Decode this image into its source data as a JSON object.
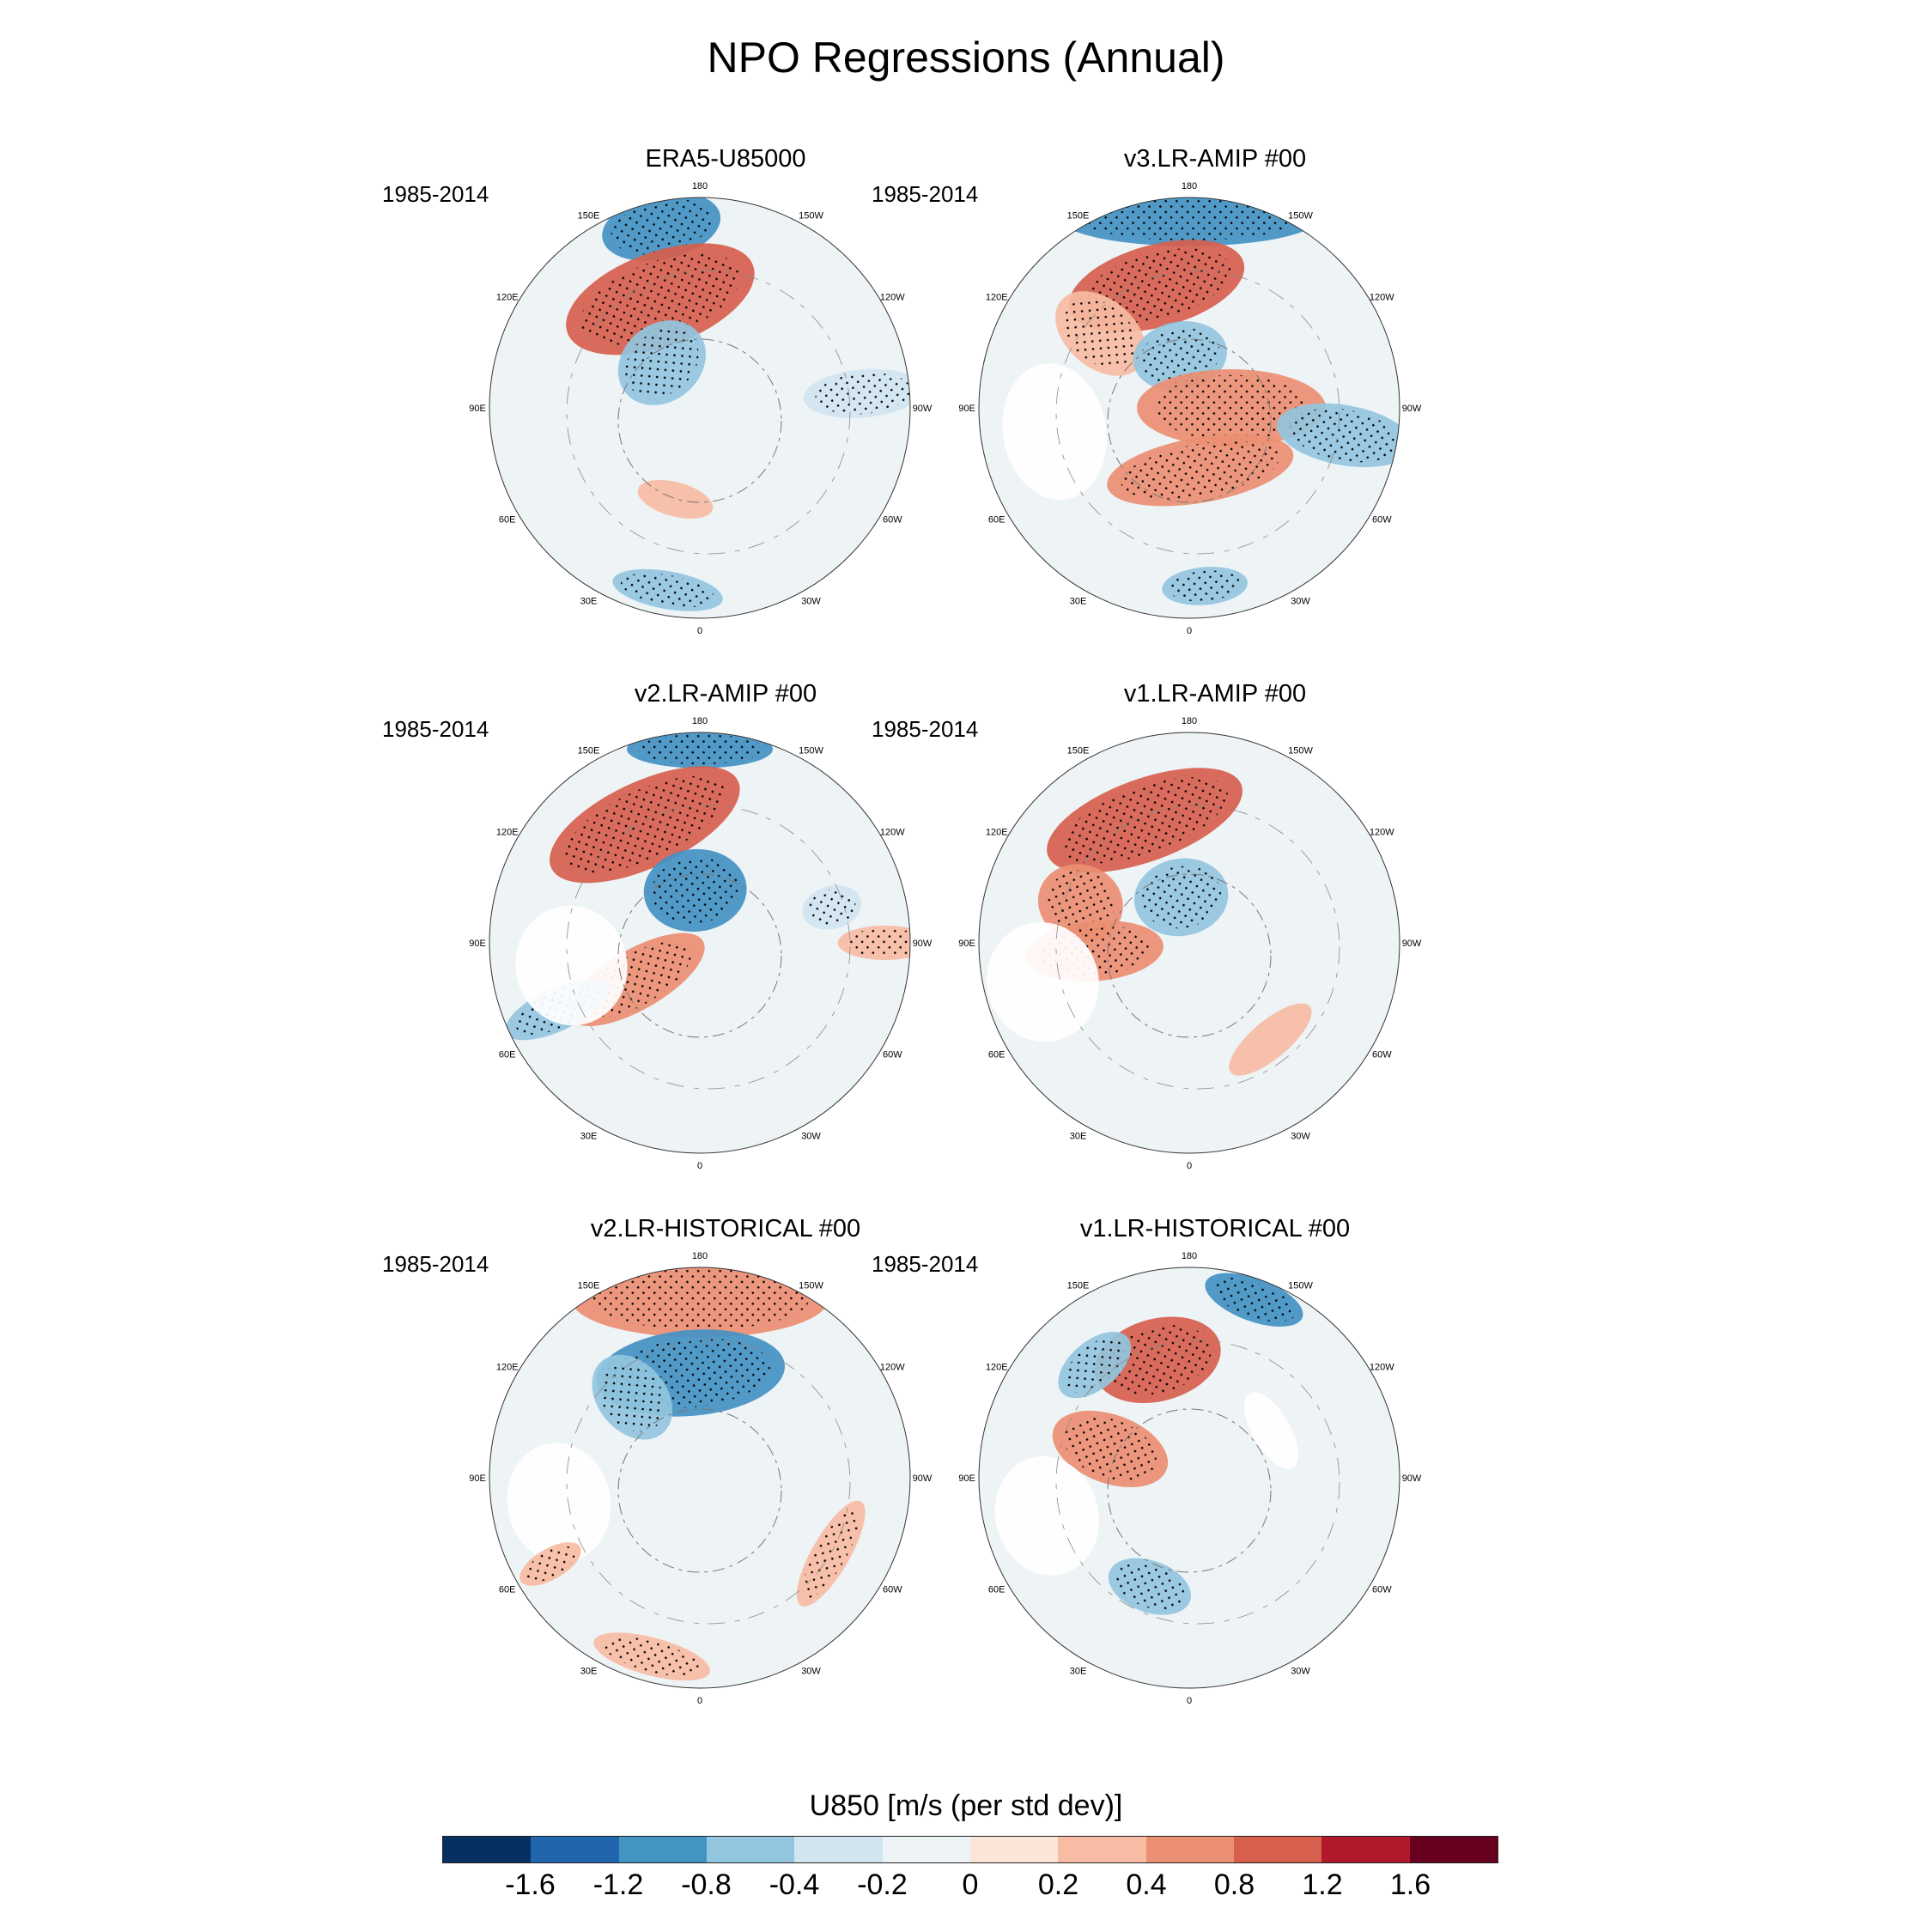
{
  "title": "NPO Regressions (Annual)",
  "colorbar": {
    "title": "U850 [m/s (per std dev)]",
    "colors": [
      "#053061",
      "#2166ac",
      "#4393c3",
      "#92c5de",
      "#d1e5f0",
      "#eef3f6",
      "#fbe5d9",
      "#f7bca3",
      "#eb8f72",
      "#d6604d",
      "#b2182b",
      "#67001f"
    ],
    "labels": [
      "-1.6",
      "-1.2",
      "-0.8",
      "-0.4",
      "-0.2",
      "0",
      "0.2",
      "0.4",
      "0.8",
      "1.2",
      "1.6"
    ]
  },
  "lon_labels": [
    "180",
    "150E",
    "120E",
    "90E",
    "60E",
    "30E",
    "0",
    "30W",
    "60W",
    "90W",
    "120W",
    "150W"
  ],
  "panels": [
    {
      "title": "ERA5-U85000",
      "period": "1985-2014",
      "features": [
        {
          "lon": 168,
          "r": 0.88,
          "w": 70,
          "h": 38,
          "color": "#4393c3",
          "stipple": true
        },
        {
          "lon": 160,
          "r": 0.55,
          "w": 115,
          "h": 55,
          "color": "#d6604d",
          "stipple": true
        },
        {
          "lon": 140,
          "r": 0.28,
          "w": 55,
          "h": 45,
          "color": "#92c5de",
          "stipple": true
        },
        {
          "lon": 15,
          "r": 0.45,
          "w": 45,
          "h": 20,
          "color": "#f7bca3",
          "stipple": false
        },
        {
          "lon": 10,
          "r": 0.88,
          "w": 65,
          "h": 22,
          "color": "#92c5de",
          "stipple": true
        },
        {
          "lon": 265,
          "r": 0.78,
          "w": 28,
          "h": 70,
          "color": "#d1e5f0",
          "stipple": true
        }
      ]
    },
    {
      "title": "v3.LR-AMIP  #00",
      "period": "1985-2014",
      "features": [
        {
          "lon": 180,
          "r": 0.9,
          "w": 150,
          "h": 32,
          "color": "#4393c3",
          "stipple": true
        },
        {
          "lon": 165,
          "r": 0.6,
          "w": 105,
          "h": 48,
          "color": "#d6604d",
          "stipple": true
        },
        {
          "lon": 130,
          "r": 0.55,
          "w": 40,
          "h": 60,
          "color": "#f7bca3",
          "stipple": true
        },
        {
          "lon": 170,
          "r": 0.25,
          "w": 55,
          "h": 40,
          "color": "#92c5de",
          "stipple": true
        },
        {
          "lon": 270,
          "r": 0.2,
          "w": 45,
          "h": 110,
          "color": "#eb8f72",
          "stipple": true
        },
        {
          "lon": 350,
          "r": 0.3,
          "w": 110,
          "h": 38,
          "color": "#eb8f72",
          "stipple": true
        },
        {
          "lon": 280,
          "r": 0.75,
          "w": 35,
          "h": 80,
          "color": "#92c5de",
          "stipple": true
        },
        {
          "lon": 80,
          "r": 0.65,
          "w": 80,
          "h": 60,
          "color": "#ffffff",
          "stipple": false
        },
        {
          "lon": 355,
          "r": 0.85,
          "w": 50,
          "h": 22,
          "color": "#92c5de",
          "stipple": true
        }
      ]
    },
    {
      "title": "v2.LR-AMIP  #00",
      "period": "1985-2014",
      "features": [
        {
          "lon": 180,
          "r": 0.92,
          "w": 85,
          "h": 22,
          "color": "#4393c3",
          "stipple": true
        },
        {
          "lon": 155,
          "r": 0.62,
          "w": 120,
          "h": 50,
          "color": "#d6604d",
          "stipple": true
        },
        {
          "lon": 175,
          "r": 0.25,
          "w": 60,
          "h": 48,
          "color": "#4393c3",
          "stipple": true
        },
        {
          "lon": 60,
          "r": 0.35,
          "w": 35,
          "h": 90,
          "color": "#eb8f72",
          "stipple": true
        },
        {
          "lon": 65,
          "r": 0.75,
          "w": 25,
          "h": 65,
          "color": "#92c5de",
          "stipple": true
        },
        {
          "lon": 270,
          "r": 0.88,
          "w": 20,
          "h": 55,
          "color": "#f7bca3",
          "stipple": true
        },
        {
          "lon": 80,
          "r": 0.62,
          "w": 70,
          "h": 65,
          "color": "#ffffff",
          "stipple": false
        },
        {
          "lon": 255,
          "r": 0.65,
          "w": 25,
          "h": 35,
          "color": "#d1e5f0",
          "stipple": true
        }
      ]
    },
    {
      "title": "v1.LR-AMIP  #00",
      "period": "1985-2014",
      "features": [
        {
          "lon": 160,
          "r": 0.62,
          "w": 120,
          "h": 48,
          "color": "#d6604d",
          "stipple": true
        },
        {
          "lon": 110,
          "r": 0.55,
          "w": 45,
          "h": 50,
          "color": "#eb8f72",
          "stipple": true
        },
        {
          "lon": 85,
          "r": 0.45,
          "w": 35,
          "h": 80,
          "color": "#eb8f72",
          "stipple": true
        },
        {
          "lon": 170,
          "r": 0.22,
          "w": 55,
          "h": 45,
          "color": "#92c5de",
          "stipple": true
        },
        {
          "lon": 75,
          "r": 0.72,
          "w": 70,
          "h": 65,
          "color": "#ffffff",
          "stipple": false
        },
        {
          "lon": 320,
          "r": 0.6,
          "w": 60,
          "h": 22,
          "color": "#f7bca3",
          "stipple": false
        }
      ]
    },
    {
      "title": "v2.LR-HISTORICAL  #00",
      "period": "1985-2014",
      "features": [
        {
          "lon": 180,
          "r": 0.85,
          "w": 150,
          "h": 45,
          "color": "#eb8f72",
          "stipple": true
        },
        {
          "lon": 175,
          "r": 0.5,
          "w": 110,
          "h": 50,
          "color": "#4393c3",
          "stipple": true
        },
        {
          "lon": 140,
          "r": 0.5,
          "w": 40,
          "h": 55,
          "color": "#92c5de",
          "stipple": true
        },
        {
          "lon": 15,
          "r": 0.88,
          "w": 70,
          "h": 22,
          "color": "#f7bca3",
          "stipple": true
        },
        {
          "lon": 300,
          "r": 0.72,
          "w": 70,
          "h": 22,
          "color": "#f7bca3",
          "stipple": true
        },
        {
          "lon": 80,
          "r": 0.68,
          "w": 70,
          "h": 60,
          "color": "#ffffff",
          "stipple": false
        },
        {
          "lon": 60,
          "r": 0.82,
          "w": 18,
          "h": 40,
          "color": "#f7bca3",
          "stipple": true
        }
      ]
    },
    {
      "title": "v1.LR-HISTORICAL  #00",
      "period": "1985-2014",
      "features": [
        {
          "lon": 200,
          "r": 0.9,
          "w": 60,
          "h": 25,
          "color": "#4393c3",
          "stipple": true
        },
        {
          "lon": 165,
          "r": 0.58,
          "w": 75,
          "h": 48,
          "color": "#d6604d",
          "stipple": true
        },
        {
          "lon": 110,
          "r": 0.4,
          "w": 40,
          "h": 70,
          "color": "#eb8f72",
          "stipple": true
        },
        {
          "lon": 140,
          "r": 0.7,
          "w": 50,
          "h": 28,
          "color": "#92c5de",
          "stipple": true
        },
        {
          "lon": 20,
          "r": 0.55,
          "w": 50,
          "h": 30,
          "color": "#92c5de",
          "stipple": true
        },
        {
          "lon": 75,
          "r": 0.7,
          "w": 70,
          "h": 60,
          "color": "#ffffff",
          "stipple": false
        },
        {
          "lon": 240,
          "r": 0.45,
          "w": 50,
          "h": 22,
          "color": "#ffffff",
          "stipple": false
        }
      ]
    }
  ]
}
